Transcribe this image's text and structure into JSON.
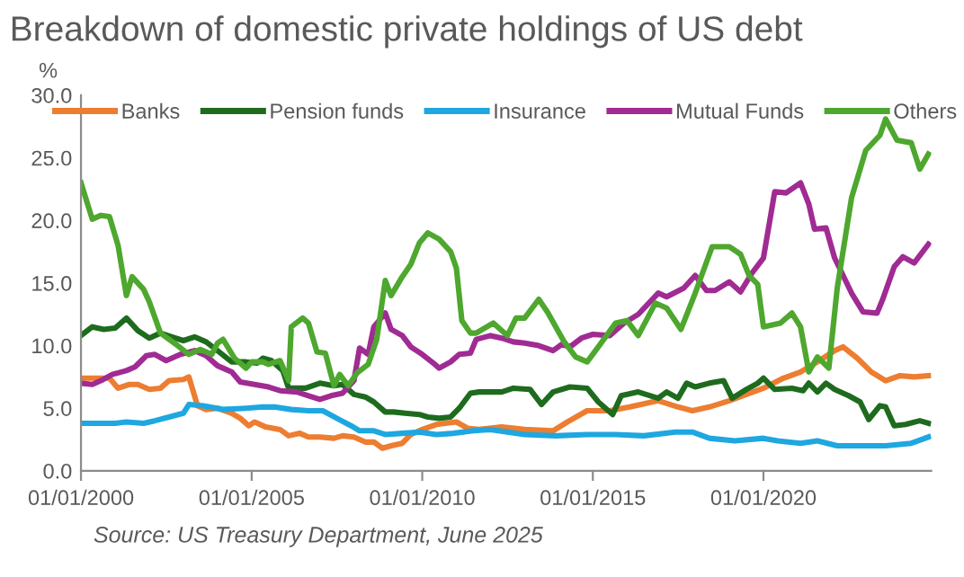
{
  "chart_data": {
    "type": "line",
    "title": "Breakdown of domestic private holdings of US debt",
    "ylabel": "%",
    "xlim": [
      "2000-01-01",
      "2024-12-01"
    ],
    "xticks": [
      {
        "value": "2000-01-01",
        "label": "01/01/2000"
      },
      {
        "value": "2005-01-01",
        "label": "01/01/2005"
      },
      {
        "value": "2010-01-01",
        "label": "01/01/2010"
      },
      {
        "value": "2015-01-01",
        "label": "01/01/2015"
      },
      {
        "value": "2020-01-01",
        "label": "01/01/2020"
      }
    ],
    "ylim": [
      0,
      30
    ],
    "yticks": [
      {
        "value": 0,
        "label": "0.0"
      },
      {
        "value": 5,
        "label": "5.0"
      },
      {
        "value": 10,
        "label": "10.0"
      },
      {
        "value": 15,
        "label": "15.0"
      },
      {
        "value": 20,
        "label": "20.0"
      },
      {
        "value": 25,
        "label": "25.0"
      },
      {
        "value": 30,
        "label": "30.0"
      }
    ],
    "grid": false,
    "legend": "top",
    "marker": "none",
    "line_style": "solid",
    "annotations": [
      "Source: US Treasury Department, June 2025"
    ],
    "series": [
      {
        "name": "Banks",
        "color": "#ed7d31",
        "x": [
          "2000-01",
          "2000-07",
          "2000-11",
          "2001-02",
          "2001-06",
          "2001-09",
          "2002-01",
          "2002-05",
          "2002-08",
          "2003-01",
          "2003-03",
          "2003-06",
          "2003-09",
          "2004-01",
          "2004-06",
          "2004-09",
          "2004-12",
          "2005-02",
          "2005-06",
          "2005-11",
          "2006-02",
          "2006-06",
          "2006-09",
          "2007-01",
          "2007-06",
          "2007-09",
          "2008-01",
          "2008-05",
          "2008-08",
          "2008-11",
          "2009-02",
          "2009-06",
          "2009-09",
          "2010-01",
          "2010-06",
          "2010-09",
          "2011-01",
          "2011-05",
          "2011-09",
          "2012-05",
          "2013-01",
          "2013-11",
          "2014-04",
          "2014-11",
          "2015-07",
          "2016-02",
          "2016-12",
          "2017-07",
          "2017-12",
          "2018-06",
          "2019-01",
          "2019-07",
          "2020-01",
          "2020-08",
          "2021-02",
          "2021-08",
          "2022-02",
          "2022-05",
          "2022-10",
          "2023-03",
          "2023-08",
          "2024-01",
          "2024-06",
          "2024-11"
        ],
        "values": [
          7.4,
          7.4,
          7.4,
          6.6,
          6.9,
          6.9,
          6.5,
          6.6,
          7.2,
          7.3,
          7.5,
          5.2,
          4.9,
          5.0,
          4.6,
          4.2,
          3.6,
          3.9,
          3.5,
          3.3,
          2.8,
          3.0,
          2.7,
          2.7,
          2.6,
          2.8,
          2.7,
          2.3,
          2.3,
          1.8,
          2.0,
          2.2,
          2.9,
          3.3,
          3.7,
          3.8,
          3.9,
          3.4,
          3.3,
          3.5,
          3.3,
          3.2,
          3.9,
          4.8,
          4.8,
          5.1,
          5.6,
          5.1,
          4.8,
          5.1,
          5.6,
          6.1,
          6.6,
          7.4,
          7.9,
          8.7,
          9.6,
          9.9,
          9.0,
          7.9,
          7.2,
          7.6,
          7.5,
          7.6
        ]
      },
      {
        "name": "Pension funds",
        "color": "#1e6b1e",
        "x": [
          "2000-01",
          "2000-05",
          "2000-09",
          "2001-01",
          "2001-05",
          "2001-09",
          "2002-01",
          "2002-05",
          "2002-09",
          "2003-01",
          "2003-05",
          "2003-09",
          "2004-01",
          "2004-06",
          "2004-11",
          "2005-03",
          "2005-05",
          "2005-08",
          "2005-12",
          "2006-02",
          "2006-08",
          "2007-01",
          "2007-06",
          "2007-09",
          "2008-01",
          "2008-05",
          "2008-08",
          "2008-12",
          "2009-03",
          "2009-07",
          "2009-12",
          "2010-03",
          "2010-07",
          "2010-11",
          "2011-02",
          "2011-06",
          "2011-09",
          "2012-05",
          "2012-09",
          "2013-03",
          "2013-07",
          "2013-11",
          "2014-05",
          "2014-11",
          "2015-03",
          "2015-08",
          "2015-11",
          "2016-05",
          "2016-12",
          "2017-03",
          "2017-07",
          "2017-10",
          "2018-01",
          "2018-06",
          "2018-11",
          "2019-02",
          "2019-07",
          "2019-11",
          "2020-01",
          "2020-05",
          "2020-11",
          "2021-03",
          "2021-05",
          "2021-08",
          "2021-11",
          "2022-02",
          "2022-07",
          "2022-11",
          "2023-02",
          "2023-06",
          "2023-08",
          "2023-11",
          "2024-03",
          "2024-08",
          "2024-11"
        ],
        "values": [
          10.8,
          11.5,
          11.3,
          11.4,
          12.2,
          11.2,
          10.6,
          11.0,
          10.7,
          10.4,
          10.7,
          10.3,
          9.6,
          8.7,
          8.7,
          8.6,
          9.0,
          8.8,
          8.0,
          6.6,
          6.6,
          7.0,
          6.8,
          6.9,
          6.1,
          5.9,
          5.5,
          4.7,
          4.7,
          4.6,
          4.5,
          4.3,
          4.2,
          4.3,
          5.0,
          6.2,
          6.3,
          6.3,
          6.6,
          6.5,
          5.3,
          6.3,
          6.7,
          6.6,
          5.5,
          4.5,
          6.0,
          6.3,
          5.8,
          6.3,
          5.8,
          7.0,
          6.7,
          7.0,
          7.2,
          5.8,
          6.5,
          7.0,
          7.4,
          6.5,
          6.6,
          6.4,
          7.0,
          6.3,
          7.0,
          6.5,
          6.0,
          5.5,
          4.1,
          5.2,
          5.1,
          3.6,
          3.7,
          4.0,
          3.8
        ]
      },
      {
        "name": "Insurance",
        "color": "#1ea7e0",
        "x": [
          "2000-01",
          "2000-07",
          "2001-01",
          "2001-05",
          "2001-11",
          "2002-03",
          "2002-08",
          "2003-01",
          "2003-03",
          "2003-08",
          "2004-03",
          "2004-11",
          "2005-05",
          "2005-09",
          "2006-03",
          "2006-09",
          "2007-02",
          "2007-07",
          "2007-12",
          "2008-03",
          "2008-08",
          "2008-12",
          "2009-06",
          "2009-12",
          "2010-06",
          "2010-12",
          "2011-07",
          "2012-01",
          "2013-01",
          "2013-12",
          "2014-11",
          "2015-09",
          "2016-07",
          "2017-06",
          "2017-12",
          "2018-06",
          "2019-03",
          "2020-01",
          "2020-06",
          "2021-02",
          "2021-08",
          "2022-03",
          "2022-11",
          "2023-08",
          "2024-05",
          "2024-11"
        ],
        "values": [
          3.8,
          3.8,
          3.8,
          3.9,
          3.8,
          4.0,
          4.3,
          4.6,
          5.3,
          5.2,
          4.9,
          5.0,
          5.1,
          5.1,
          4.9,
          4.8,
          4.8,
          4.2,
          3.6,
          3.2,
          3.2,
          2.9,
          3.0,
          3.1,
          2.9,
          3.0,
          3.2,
          3.3,
          2.9,
          2.8,
          2.9,
          2.9,
          2.8,
          3.1,
          3.1,
          2.6,
          2.4,
          2.6,
          2.4,
          2.2,
          2.4,
          2.0,
          2.0,
          2.0,
          2.2,
          2.7
        ]
      },
      {
        "name": "Mutual Funds",
        "color": "#a02b93",
        "x": [
          "2000-01",
          "2000-05",
          "2000-08",
          "2000-12",
          "2001-05",
          "2001-08",
          "2001-12",
          "2002-03",
          "2002-07",
          "2002-12",
          "2003-05",
          "2003-09",
          "2004-01",
          "2004-06",
          "2004-09",
          "2005-02",
          "2005-07",
          "2005-11",
          "2006-05",
          "2006-09",
          "2007-01",
          "2007-05",
          "2007-09",
          "2008-01",
          "2008-03",
          "2008-06",
          "2008-08",
          "2008-12",
          "2009-02",
          "2009-06",
          "2009-09",
          "2010-01",
          "2010-05",
          "2010-07",
          "2010-11",
          "2011-02",
          "2011-06",
          "2011-08",
          "2012-01",
          "2012-05",
          "2012-09",
          "2013-01",
          "2013-06",
          "2013-11",
          "2014-02",
          "2014-05",
          "2014-09",
          "2015-01",
          "2015-07",
          "2015-12",
          "2016-05",
          "2016-12",
          "2017-03",
          "2017-09",
          "2018-01",
          "2018-05",
          "2018-08",
          "2019-01",
          "2019-05",
          "2019-09",
          "2020-01",
          "2020-05",
          "2020-09",
          "2021-02",
          "2021-05",
          "2021-07",
          "2021-11",
          "2022-02",
          "2022-08",
          "2022-12",
          "2023-05",
          "2023-07",
          "2023-11",
          "2024-02",
          "2024-06",
          "2024-11"
        ],
        "values": [
          7.0,
          6.9,
          7.2,
          7.7,
          8.0,
          8.3,
          9.2,
          9.3,
          8.8,
          9.3,
          9.6,
          9.2,
          8.4,
          7.9,
          7.1,
          6.9,
          6.7,
          6.4,
          6.3,
          6.0,
          5.7,
          6.0,
          6.2,
          7.2,
          9.8,
          9.3,
          11.5,
          12.6,
          11.3,
          10.8,
          9.9,
          9.3,
          8.6,
          8.2,
          8.7,
          9.3,
          9.4,
          10.5,
          10.8,
          10.6,
          10.3,
          10.2,
          10.0,
          9.6,
          10.1,
          9.9,
          10.6,
          10.9,
          10.8,
          11.8,
          12.5,
          14.2,
          13.9,
          14.6,
          15.6,
          14.4,
          14.4,
          15.1,
          14.3,
          15.8,
          17.0,
          22.3,
          22.2,
          23.0,
          21.3,
          19.3,
          19.4,
          17.0,
          14.2,
          12.7,
          12.6,
          13.7,
          16.3,
          17.1,
          16.6,
          18.1
        ]
      },
      {
        "name": "Others",
        "color": "#4ea72e",
        "x": [
          "2000-01",
          "2000-05",
          "2000-08",
          "2000-11",
          "2001-02",
          "2001-05",
          "2001-07",
          "2001-11",
          "2002-01",
          "2002-05",
          "2002-11",
          "2003-03",
          "2003-07",
          "2003-11",
          "2004-01",
          "2004-03",
          "2004-07",
          "2004-11",
          "2005-01",
          "2005-05",
          "2005-07",
          "2005-11",
          "2006-02",
          "2006-03",
          "2006-07",
          "2006-09",
          "2006-12",
          "2007-03",
          "2007-06",
          "2007-08",
          "2007-11",
          "2008-02",
          "2008-06",
          "2008-09",
          "2008-12",
          "2009-02",
          "2009-06",
          "2009-09",
          "2009-12",
          "2010-03",
          "2010-07",
          "2010-11",
          "2011-01",
          "2011-03",
          "2011-06",
          "2011-08",
          "2012-02",
          "2012-07",
          "2012-10",
          "2013-01",
          "2013-06",
          "2013-09",
          "2014-03",
          "2014-07",
          "2014-11",
          "2015-03",
          "2015-09",
          "2016-01",
          "2016-05",
          "2016-11",
          "2017-03",
          "2017-08",
          "2018-01",
          "2018-07",
          "2019-01",
          "2019-05",
          "2019-08",
          "2019-11",
          "2020-01",
          "2020-07",
          "2020-11",
          "2021-02",
          "2021-05",
          "2021-08",
          "2021-12",
          "2022-03",
          "2022-08",
          "2023-01",
          "2023-06",
          "2023-08",
          "2023-12",
          "2024-05",
          "2024-08",
          "2024-11"
        ],
        "values": [
          23.0,
          20.1,
          20.4,
          20.3,
          18.0,
          14.0,
          15.5,
          14.5,
          13.5,
          11.0,
          10.0,
          9.3,
          9.7,
          9.3,
          10.2,
          10.5,
          9.0,
          8.2,
          8.7,
          8.7,
          8.5,
          8.8,
          7.2,
          11.5,
          12.2,
          11.8,
          9.5,
          9.4,
          6.8,
          7.7,
          6.8,
          7.8,
          8.5,
          10.5,
          15.2,
          14.0,
          15.5,
          16.5,
          18.2,
          19.0,
          18.5,
          17.5,
          16.2,
          12.0,
          11.0,
          11.0,
          11.8,
          10.8,
          12.2,
          12.2,
          13.7,
          12.7,
          10.3,
          9.1,
          8.7,
          9.9,
          11.8,
          12.0,
          10.8,
          13.4,
          13.0,
          11.3,
          14.2,
          17.9,
          17.9,
          17.3,
          15.6,
          14.9,
          11.5,
          11.8,
          12.6,
          11.5,
          7.9,
          9.1,
          8.2,
          14.6,
          21.8,
          25.6,
          26.8,
          28.1,
          26.4,
          26.2,
          24.1,
          25.3
        ]
      }
    ]
  }
}
